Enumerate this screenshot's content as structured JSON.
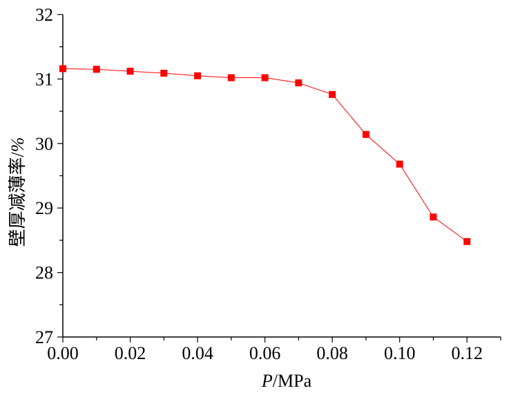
{
  "chart_data": {
    "type": "line",
    "xlabel_italic": "P",
    "xlabel_rest": "/MPa",
    "ylabel_text": "壁厚减薄率/",
    "ylabel_unit": "%",
    "x_ticks": [
      "0.00",
      "0.02",
      "0.04",
      "0.06",
      "0.08",
      "0.10",
      "0.12"
    ],
    "y_ticks": [
      "27",
      "28",
      "29",
      "30",
      "31",
      "32"
    ],
    "xlim": [
      0,
      0.13
    ],
    "ylim": [
      27,
      32
    ],
    "grid": false,
    "colors": {
      "series": "#ff0000",
      "axis": "#000000"
    },
    "series": [
      {
        "marker": "square",
        "x": [
          0.0,
          0.01,
          0.02,
          0.03,
          0.04,
          0.05,
          0.06,
          0.07,
          0.08,
          0.09,
          0.1,
          0.11,
          0.12
        ],
        "y": [
          31.16,
          31.15,
          31.12,
          31.09,
          31.05,
          31.02,
          31.02,
          30.94,
          30.76,
          30.14,
          29.68,
          28.86,
          28.48
        ]
      }
    ]
  }
}
